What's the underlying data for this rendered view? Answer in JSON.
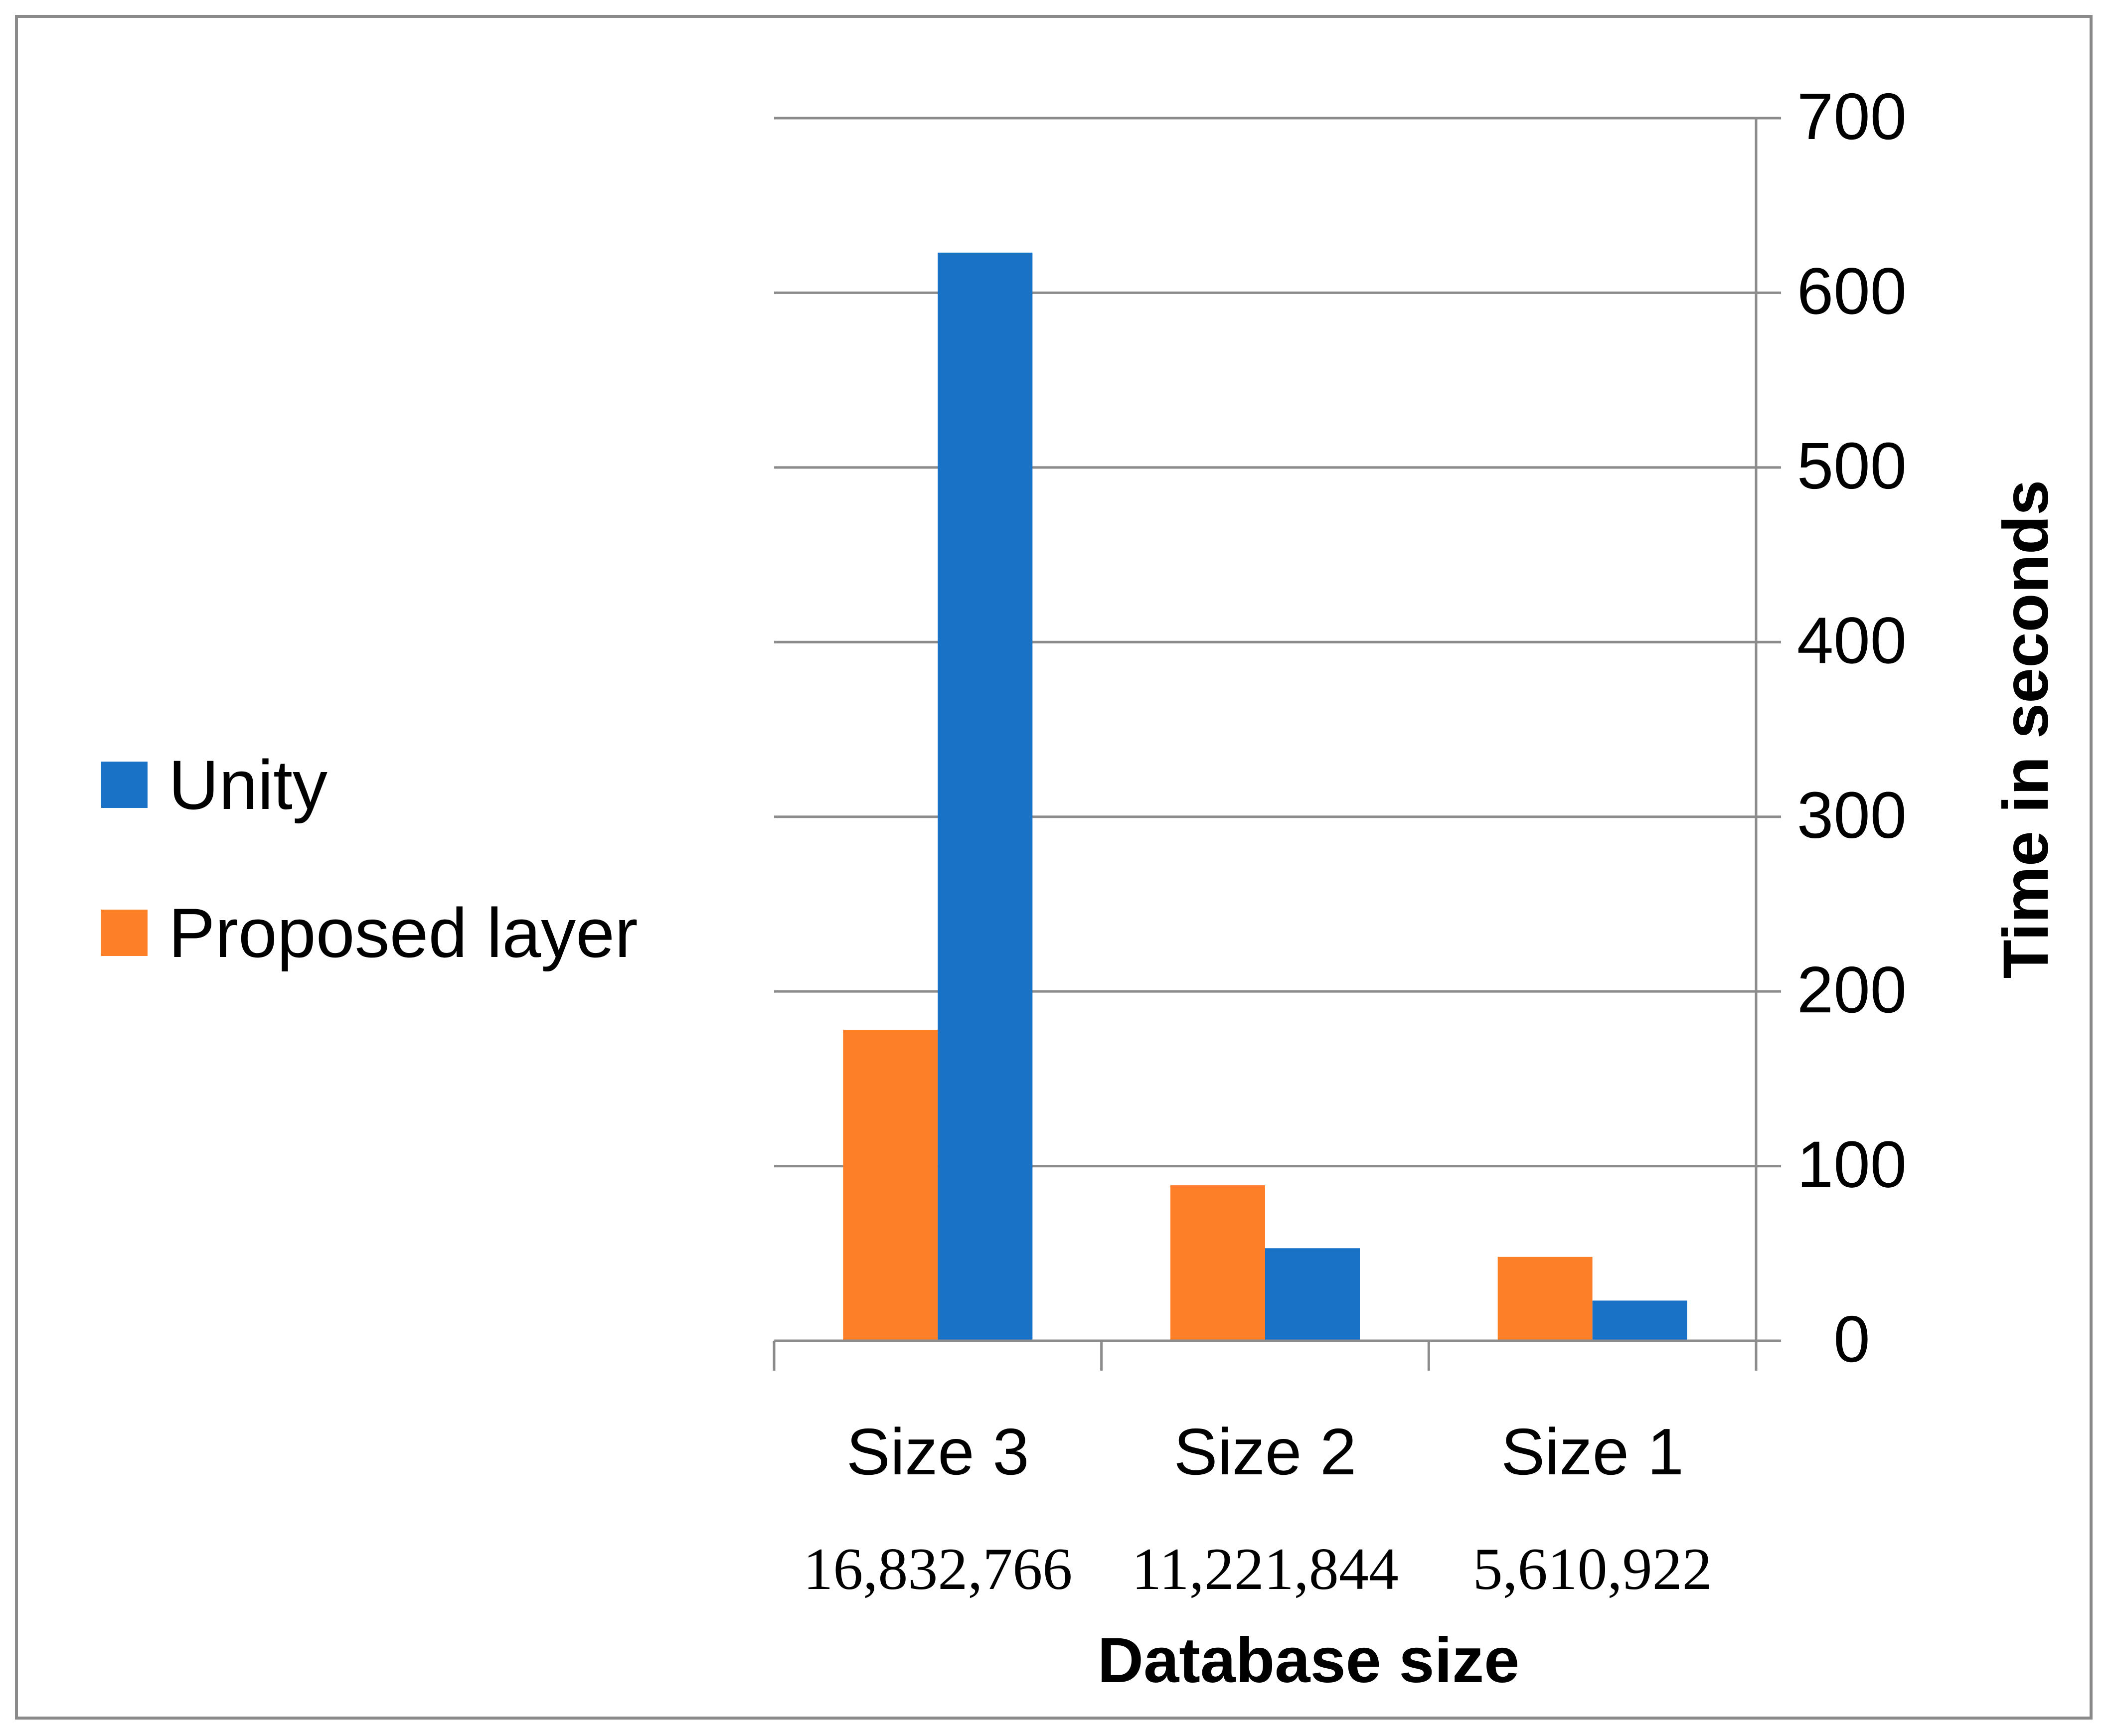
{
  "chart_data": {
    "type": "bar",
    "categories": [
      "Size 3",
      "Size 2",
      "Size 1"
    ],
    "category_sublabels": [
      "16,832,766",
      "11,221,844",
      "5,610,922"
    ],
    "series": [
      {
        "name": "Proposed layer",
        "values": [
          178,
          89,
          48
        ],
        "color": "#fd7f28"
      },
      {
        "name": "Unity",
        "values": [
          623,
          53,
          23
        ],
        "color": "#1a72c7"
      }
    ],
    "legend_order": [
      "Unity",
      "Proposed layer"
    ],
    "legend_position": "left",
    "title": "",
    "xlabel": "Database size",
    "ylabel": "Time in seconds",
    "ylim": [
      0,
      700
    ],
    "yticks": [
      0,
      100,
      200,
      300,
      400,
      500,
      600,
      700
    ],
    "y_axis_side": "right",
    "grid": true,
    "colors": {
      "grid": "#8c8c8c",
      "text": "#000000"
    }
  }
}
